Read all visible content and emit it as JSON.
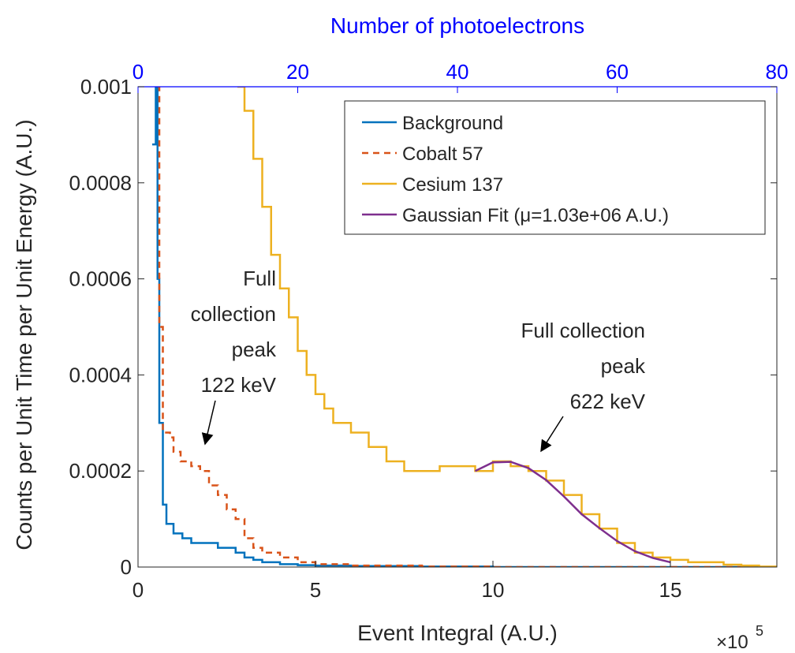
{
  "chart_data": {
    "type": "step",
    "xlabel": "Event Integral (A.U.)",
    "ylabel": "Counts per Unit Time per Unit Energy (A.U.)",
    "x2label": "Number of photoelectrons",
    "x_multiplier": {
      "base": "×10",
      "exponent": "5"
    },
    "xlim": [
      0,
      18
    ],
    "xticks": [
      0,
      5,
      10,
      15
    ],
    "x2lim": [
      0,
      80
    ],
    "x2ticks": [
      0,
      20,
      40,
      60,
      80
    ],
    "x2color": "#0000ff",
    "ylim": [
      0,
      0.001
    ],
    "yticks": [
      0,
      0.0002,
      0.0004,
      0.0006,
      0.0008,
      0.001
    ],
    "legend": "upper right",
    "series": [
      {
        "name": "Background",
        "color": "#0072bd",
        "dash": false,
        "x": [
          0.4,
          0.5,
          0.55,
          0.6,
          0.7,
          0.8,
          1.0,
          1.25,
          1.5,
          1.75,
          2.0,
          2.25,
          2.5,
          2.75,
          3.0,
          3.25,
          3.5,
          4.0,
          4.5,
          5,
          6,
          8,
          10,
          12,
          14,
          16,
          18
        ],
        "values": [
          0.00088,
          0.001,
          0.0006,
          0.0003,
          0.00013,
          9e-05,
          7e-05,
          6e-05,
          5e-05,
          5e-05,
          5e-05,
          4e-05,
          4e-05,
          3e-05,
          2e-05,
          1.5e-05,
          1e-05,
          6e-06,
          4e-06,
          3e-06,
          2e-06,
          1e-06,
          0,
          0,
          0,
          0,
          0
        ]
      },
      {
        "name": "Cobalt 57",
        "color": "#d95319",
        "dash": true,
        "x": [
          0.55,
          0.6,
          0.7,
          0.9,
          1.0,
          1.2,
          1.5,
          1.75,
          2.0,
          2.25,
          2.5,
          2.75,
          3.0,
          3.25,
          3.5,
          4.0,
          4.5,
          5,
          6,
          8,
          10,
          12,
          14,
          16,
          18
        ],
        "values": [
          0.001,
          0.0005,
          0.00028,
          0.00027,
          0.00024,
          0.00022,
          0.00021,
          0.0002,
          0.00017,
          0.00015,
          0.00012,
          0.0001,
          6e-05,
          4e-05,
          3e-05,
          2e-05,
          1e-05,
          6e-06,
          3e-06,
          1e-06,
          0,
          0,
          0,
          0,
          0
        ]
      },
      {
        "name": "Cesium 137",
        "color": "#edb120",
        "dash": false,
        "x": [
          2.8,
          3.0,
          3.25,
          3.5,
          3.75,
          4.0,
          4.25,
          4.5,
          4.75,
          5.0,
          5.25,
          5.5,
          6.0,
          6.5,
          7.0,
          7.5,
          8,
          8.5,
          9,
          9.5,
          10,
          10.5,
          11,
          11.5,
          12,
          12.5,
          13,
          13.5,
          14,
          14.5,
          15,
          15.5,
          16,
          16.5,
          17,
          17.5,
          18
        ],
        "values": [
          0.001,
          0.00095,
          0.00085,
          0.00075,
          0.00065,
          0.00058,
          0.00052,
          0.00045,
          0.0004,
          0.00036,
          0.00033,
          0.0003,
          0.00028,
          0.00025,
          0.00022,
          0.0002,
          0.0002,
          0.00021,
          0.00021,
          0.0002,
          0.00022,
          0.00021,
          0.0002,
          0.00018,
          0.00015,
          0.00011,
          8e-05,
          5e-05,
          3e-05,
          2e-05,
          1.5e-05,
          1e-05,
          1e-05,
          5e-06,
          3e-06,
          1e-06,
          0
        ]
      },
      {
        "name": "Gaussian Fit (μ=1.03e+06 A.U.)",
        "color": "#7e2f8e",
        "dash": false,
        "smooth": true,
        "x": [
          9.5,
          10,
          10.5,
          11,
          11.5,
          12,
          12.5,
          13,
          13.5,
          14,
          14.5,
          15
        ],
        "values": [
          0.0002,
          0.000218,
          0.000219,
          0.000206,
          0.000181,
          0.000147,
          0.00011,
          8.1e-05,
          5.4e-05,
          3.3e-05,
          1.9e-05,
          1e-05
        ]
      }
    ],
    "annotations": [
      {
        "lines": [
          "Full",
          "collection",
          "peak",
          "122 keV"
        ]
      },
      {
        "lines": [
          "Full collection",
          "peak",
          "622 keV"
        ]
      }
    ]
  }
}
